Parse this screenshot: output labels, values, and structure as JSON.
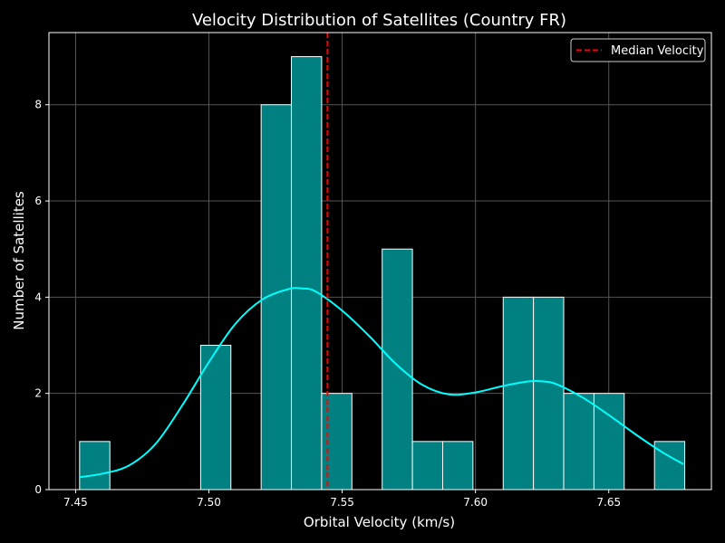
{
  "chart_data": {
    "type": "bar",
    "title": "Velocity Distribution of Satellites (Country FR)",
    "xlabel": "Orbital Velocity (km/s)",
    "ylabel": "Number of Satellites",
    "xlim": [
      7.44,
      7.6885
    ],
    "ylim": [
      0,
      9.5
    ],
    "xticks": [
      7.45,
      7.5,
      7.55,
      7.6,
      7.65
    ],
    "xtick_labels": [
      "7.45",
      "7.50",
      "7.55",
      "7.60",
      "7.65"
    ],
    "yticks": [
      0,
      2,
      4,
      6,
      8
    ],
    "ytick_labels": [
      "0",
      "2",
      "4",
      "6",
      "8"
    ],
    "grid": true,
    "legend_position": "top-right",
    "bins": {
      "start": 7.4515,
      "width": 0.01135,
      "counts": [
        1,
        0,
        0,
        0,
        3,
        0,
        8,
        9,
        2,
        0,
        5,
        1,
        1,
        0,
        4,
        4,
        2,
        2,
        0,
        1
      ]
    },
    "kde": {
      "x": [
        7.4515,
        7.46,
        7.47,
        7.48,
        7.49,
        7.5,
        7.51,
        7.52,
        7.53,
        7.535,
        7.54,
        7.55,
        7.56,
        7.57,
        7.58,
        7.59,
        7.6,
        7.61,
        7.62,
        7.625,
        7.63,
        7.64,
        7.65,
        7.66,
        7.67,
        7.678
      ],
      "y": [
        0.26,
        0.33,
        0.5,
        0.95,
        1.75,
        2.65,
        3.45,
        3.95,
        4.17,
        4.18,
        4.12,
        3.72,
        3.2,
        2.62,
        2.18,
        1.98,
        2.02,
        2.15,
        2.25,
        2.25,
        2.2,
        1.92,
        1.55,
        1.15,
        0.78,
        0.53
      ]
    },
    "median": {
      "label": "Median Velocity",
      "value": 7.5445
    },
    "colors": {
      "background": "#000000",
      "bar_fill": "#008080",
      "bar_edge": "#ffffff",
      "kde_line": "#00ffff",
      "median_line": "#ff0000",
      "grid": "#555555",
      "axes": "#ffffff"
    }
  }
}
